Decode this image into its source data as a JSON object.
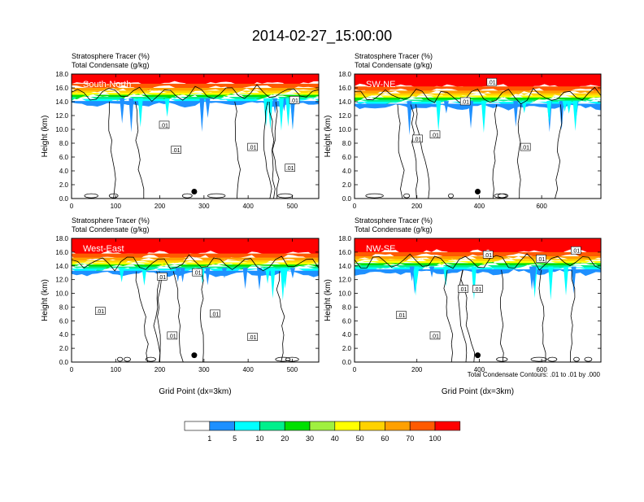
{
  "title": "2014-02-27_15:00:00",
  "label_tracer": "Stratosphere Tracer",
  "label_tracer_unit": "(%)",
  "label_condensate": "Total Condensate",
  "label_condensate_unit": "(g/kg)",
  "ylabel": "Height (km)",
  "xlabel": "Grid Point (dx=3km)",
  "contour_note": "Total Condensate Contours: .01 to .01 by .000",
  "colors": {
    "c0": "#ffffff",
    "c1": "#1e90ff",
    "c5": "#00ffff",
    "c10": "#00f08c",
    "c20": "#00e000",
    "c30": "#a0f040",
    "c40": "#ffff00",
    "c50": "#ffd200",
    "c60": "#ffa000",
    "c70": "#ff5a00",
    "c100": "#ff0000"
  },
  "colorbar": {
    "levels": [
      "1",
      "5",
      "10",
      "20",
      "30",
      "40",
      "50",
      "60",
      "70",
      "100"
    ]
  },
  "chart_data": [
    {
      "type": "contour-cross-section",
      "panel_label": "South-North",
      "xlim": [
        0,
        560
      ],
      "ylim": [
        0,
        18
      ],
      "xticks": [
        "0",
        "100",
        "200",
        "300",
        "400",
        "500"
      ],
      "xtick_values": [
        0,
        100,
        200,
        300,
        400,
        500
      ],
      "yticks": [
        "0.0",
        "2.0",
        "4.0",
        "6.0",
        "8.0",
        "10.0",
        "12.0",
        "14.0",
        "16.0",
        "18.0"
      ],
      "tropopause_km": 15.0,
      "contour_labels": [
        {
          "text": ".01",
          "x": 210,
          "y": 10.6
        },
        {
          "text": ".01",
          "x": 237,
          "y": 7.0
        },
        {
          "text": ".01",
          "x": 410,
          "y": 7.4
        },
        {
          "text": ".01",
          "x": 495,
          "y": 4.4
        },
        {
          "text": ".01",
          "x": 505,
          "y": 14.2
        }
      ],
      "marker": {
        "x": 278,
        "y": 1.0
      }
    },
    {
      "type": "contour-cross-section",
      "panel_label": "SW-NE",
      "xlim": [
        0,
        790
      ],
      "ylim": [
        0,
        18
      ],
      "xticks": [
        "0",
        "200",
        "400",
        "600"
      ],
      "xtick_values": [
        0,
        200,
        400,
        600
      ],
      "yticks": [
        "0.0",
        "2.0",
        "4.0",
        "6.0",
        "8.0",
        "10.0",
        "12.0",
        "14.0",
        "16.0",
        "18.0"
      ],
      "tropopause_km": 14.6,
      "contour_labels": [
        {
          "text": ".01",
          "x": 202,
          "y": 8.6
        },
        {
          "text": ".01",
          "x": 258,
          "y": 9.2
        },
        {
          "text": ".01",
          "x": 355,
          "y": 14.0
        },
        {
          "text": ".01",
          "x": 440,
          "y": 16.8
        },
        {
          "text": ".01",
          "x": 548,
          "y": 7.4
        }
      ],
      "marker": {
        "x": 395,
        "y": 1.0
      }
    },
    {
      "type": "contour-cross-section",
      "panel_label": "West-East",
      "xlim": [
        0,
        560
      ],
      "ylim": [
        0,
        18
      ],
      "xticks": [
        "0",
        "100",
        "200",
        "300",
        "400",
        "500"
      ],
      "xtick_values": [
        0,
        100,
        200,
        300,
        400,
        500
      ],
      "yticks": [
        "0.0",
        "2.0",
        "4.0",
        "6.0",
        "8.0",
        "10.0",
        "12.0",
        "14.0",
        "16.0",
        "18.0"
      ],
      "tropopause_km": 14.2,
      "contour_labels": [
        {
          "text": ".01",
          "x": 205,
          "y": 12.4
        },
        {
          "text": ".01",
          "x": 285,
          "y": 13.0
        },
        {
          "text": ".01",
          "x": 65,
          "y": 7.4
        },
        {
          "text": ".01",
          "x": 325,
          "y": 7.0
        },
        {
          "text": ".01",
          "x": 228,
          "y": 3.8
        },
        {
          "text": ".01",
          "x": 410,
          "y": 3.6
        }
      ],
      "marker": {
        "x": 278,
        "y": 1.0
      }
    },
    {
      "type": "contour-cross-section",
      "panel_label": "NW-SE",
      "xlim": [
        0,
        790
      ],
      "ylim": [
        0,
        18
      ],
      "xticks": [
        "0",
        "200",
        "400",
        "600"
      ],
      "xtick_values": [
        0,
        200,
        400,
        600
      ],
      "yticks": [
        "0.0",
        "2.0",
        "4.0",
        "6.0",
        "8.0",
        "10.0",
        "12.0",
        "14.0",
        "16.0",
        "18.0"
      ],
      "tropopause_km": 14.4,
      "contour_labels": [
        {
          "text": ".01",
          "x": 150,
          "y": 6.8
        },
        {
          "text": ".01",
          "x": 258,
          "y": 3.8
        },
        {
          "text": ".01",
          "x": 348,
          "y": 10.6
        },
        {
          "text": ".01",
          "x": 395,
          "y": 10.6
        },
        {
          "text": ".01",
          "x": 428,
          "y": 15.6
        },
        {
          "text": ".01",
          "x": 598,
          "y": 15.0
        },
        {
          "text": ".01",
          "x": 710,
          "y": 16.2
        }
      ],
      "marker": {
        "x": 395,
        "y": 1.0
      }
    }
  ]
}
